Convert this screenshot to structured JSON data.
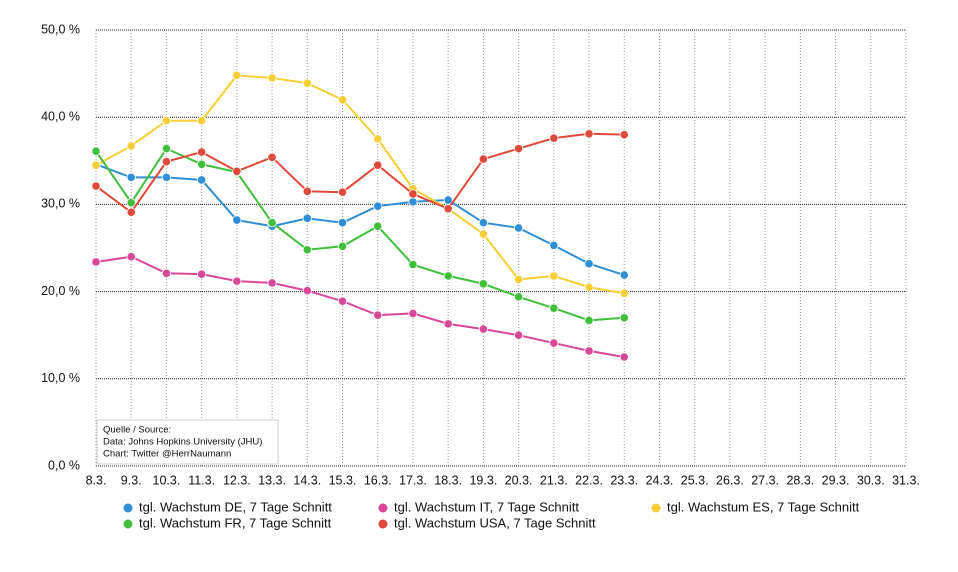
{
  "chart_data": {
    "type": "line",
    "categories": [
      "8.3.",
      "9.3.",
      "10.3.",
      "11.3.",
      "12.3.",
      "13.3.",
      "14.3.",
      "15.3.",
      "16.3.",
      "17.3.",
      "18.3.",
      "19.3.",
      "20.3.",
      "21.3.",
      "22.3.",
      "23.3.",
      "24.3.",
      "25.3.",
      "26.3.",
      "27.3.",
      "28.3.",
      "29.3.",
      "30.3.",
      "31.3."
    ],
    "ylim": [
      0,
      50
    ],
    "yticks": [
      {
        "value": 0,
        "label": "0,0 %"
      },
      {
        "value": 10,
        "label": "10,0 %"
      },
      {
        "value": 20,
        "label": "20,0 %"
      },
      {
        "value": 30,
        "label": "30,0 %"
      },
      {
        "value": 40,
        "label": "40,0 %"
      },
      {
        "value": 50,
        "label": "50,0 %"
      }
    ],
    "grid": true,
    "legend": "bottom",
    "annotations": [
      "Quelle / Source:",
      "Data: Johns Hopkins University (JHU)",
      "Chart: Twitter @HerrNaumann"
    ],
    "series": [
      {
        "name": "tgl. Wachstum DE, 7 Tage Schnitt",
        "color": "#2e8fd8",
        "values": [
          34.6,
          33.1,
          33.1,
          32.8,
          28.2,
          27.5,
          28.4,
          27.9,
          29.8,
          30.3,
          30.5,
          27.9,
          27.3,
          25.3,
          23.2,
          21.9,
          null,
          null,
          null,
          null,
          null,
          null,
          null,
          null
        ]
      },
      {
        "name": "tgl. Wachstum IT, 7 Tage Schnitt",
        "color": "#d9479a",
        "values": [
          23.4,
          24.0,
          22.1,
          22.0,
          21.2,
          21.0,
          20.1,
          18.9,
          17.3,
          17.5,
          16.3,
          15.7,
          15.0,
          14.1,
          13.2,
          12.5,
          null,
          null,
          null,
          null,
          null,
          null,
          null,
          null
        ]
      },
      {
        "name": "tgl. Wachstum ES, 7 Tage Schnitt",
        "color": "#f5cf35",
        "values": [
          34.5,
          36.7,
          39.6,
          39.6,
          44.8,
          44.5,
          43.9,
          42.0,
          37.5,
          31.8,
          29.5,
          26.6,
          21.4,
          21.8,
          20.5,
          19.8,
          null,
          null,
          null,
          null,
          null,
          null,
          null,
          null
        ]
      },
      {
        "name": "tgl. Wachstum FR, 7 Tage Schnitt",
        "color": "#3fbf3a",
        "values": [
          36.1,
          30.2,
          36.4,
          34.6,
          33.7,
          27.9,
          24.8,
          25.2,
          27.5,
          23.1,
          21.8,
          20.9,
          19.4,
          18.1,
          16.7,
          17.0,
          null,
          null,
          null,
          null,
          null,
          null,
          null,
          null
        ]
      },
      {
        "name": "tgl. Wachstum USA, 7 Tage Schnitt",
        "color": "#e0483a",
        "values": [
          32.1,
          29.1,
          34.9,
          36.0,
          33.8,
          35.4,
          31.5,
          31.4,
          34.5,
          31.2,
          29.5,
          35.2,
          36.4,
          37.6,
          38.1,
          38.0,
          null,
          null,
          null,
          null,
          null,
          null,
          null,
          null
        ]
      }
    ]
  }
}
